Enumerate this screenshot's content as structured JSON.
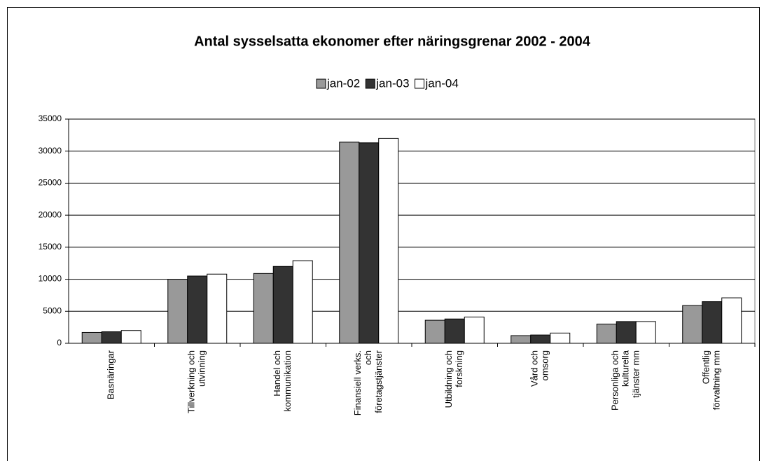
{
  "chart_data": {
    "type": "bar",
    "title": "Antal sysselsatta ekonomer efter näringsgrenar 2002 - 2004",
    "categories": [
      [
        "Basnäringar"
      ],
      [
        "Tillverkning och",
        "utvinning"
      ],
      [
        "Handel och",
        "kommunikation"
      ],
      [
        "Finansiell verks.",
        "och",
        "företagstjänster"
      ],
      [
        "Utbildning och",
        "forskning"
      ],
      [
        "Vård och",
        "omsorg"
      ],
      [
        "Personliga och",
        "kulturella",
        "tjänster mm"
      ],
      [
        "Offentlig",
        "förvaltning mm"
      ]
    ],
    "series": [
      {
        "name": "jan-02",
        "color": "#999999",
        "values": [
          1700,
          10000,
          10900,
          31400,
          3600,
          1200,
          3000,
          5900
        ]
      },
      {
        "name": "jan-03",
        "color": "#333333",
        "values": [
          1800,
          10500,
          12000,
          31300,
          3800,
          1300,
          3400,
          6500
        ]
      },
      {
        "name": "jan-04",
        "color": "#ffffff",
        "values": [
          2000,
          10800,
          12900,
          32000,
          4100,
          1600,
          3400,
          7100
        ]
      }
    ],
    "ylim": [
      0,
      35000
    ],
    "yticks": [
      0,
      5000,
      10000,
      15000,
      20000,
      25000,
      30000,
      35000
    ],
    "grid": true,
    "legend": "top"
  }
}
